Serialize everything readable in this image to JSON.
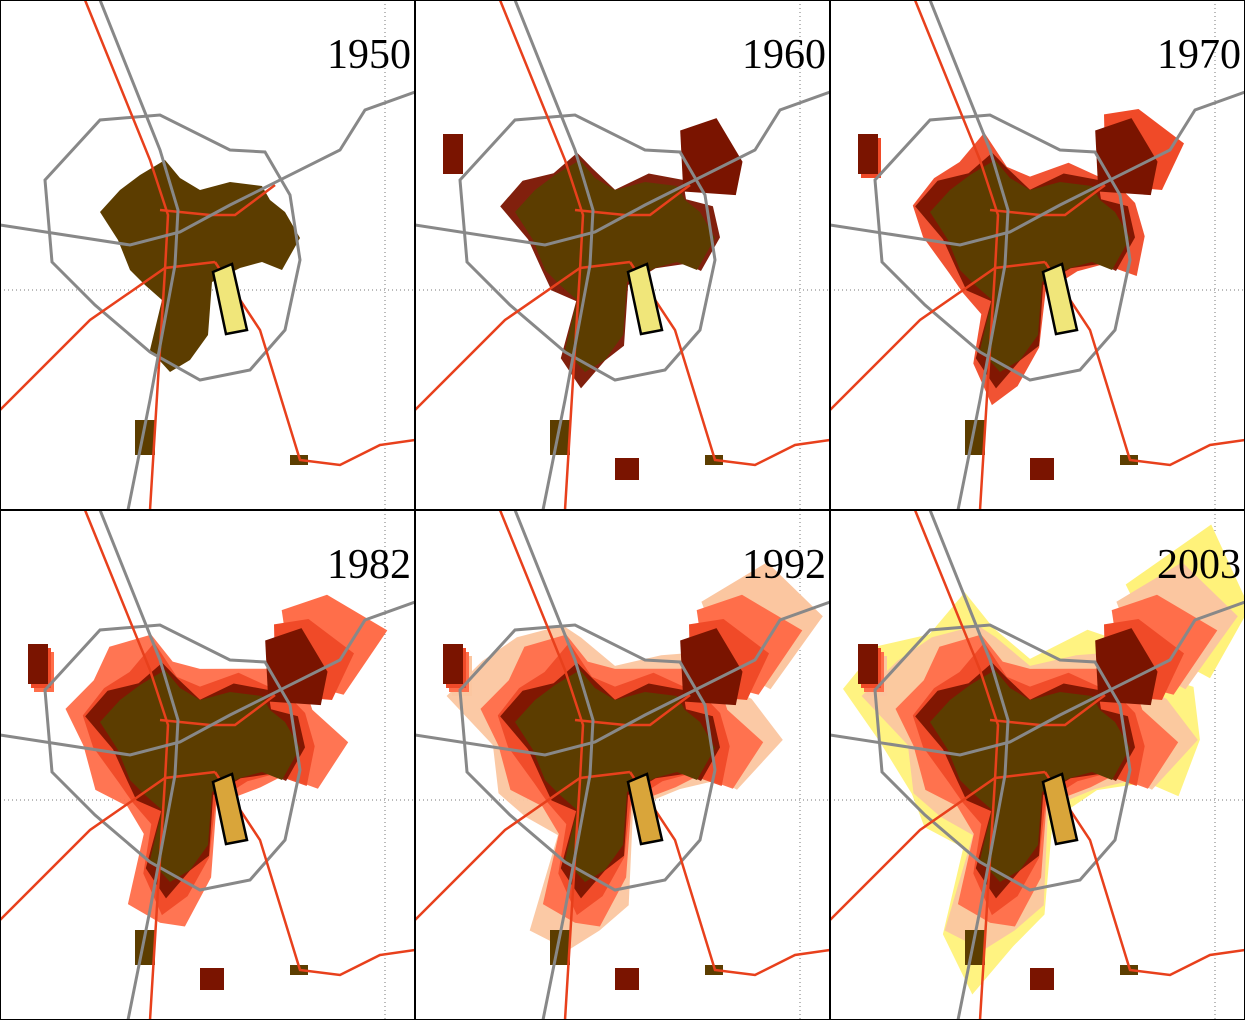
{
  "panels": [
    {
      "label": "1950"
    },
    {
      "label": "1960"
    },
    {
      "label": "1970"
    },
    {
      "label": "1982"
    },
    {
      "label": "1992"
    },
    {
      "label": "2003"
    }
  ]
}
